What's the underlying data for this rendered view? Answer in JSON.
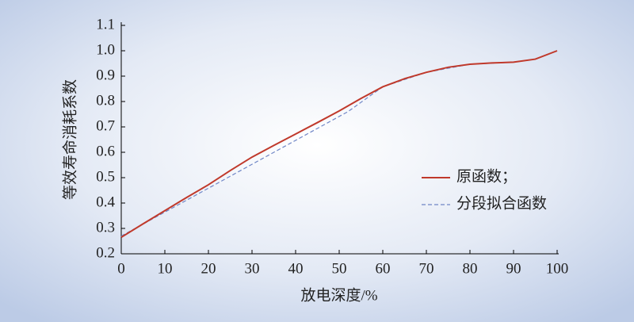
{
  "chart_data": {
    "type": "line",
    "x_label": "放电深度/%",
    "y_label": "等效寿命消耗系数",
    "xlim": [
      0,
      100
    ],
    "xticks": [
      0,
      10,
      20,
      30,
      40,
      50,
      60,
      70,
      80,
      90,
      100
    ],
    "ylim": [
      0.2,
      1.1
    ],
    "yticks": [
      0.2,
      0.3,
      0.4,
      0.5,
      0.6,
      0.7,
      0.8,
      0.9,
      {
        "value": 1,
        "label": "1.0"
      },
      1.1
    ],
    "legend": "right",
    "series": [
      {
        "name": "原函数；",
        "color": "#c0392b",
        "dash": false,
        "x": [
          0,
          5,
          10,
          15,
          20,
          25,
          30,
          35,
          40,
          45,
          50,
          55,
          60,
          65,
          70,
          75,
          80,
          85,
          90,
          95,
          100
        ],
        "values": [
          0.265,
          0.318,
          0.37,
          0.422,
          0.472,
          0.528,
          0.581,
          0.627,
          0.672,
          0.717,
          0.763,
          0.812,
          0.858,
          0.89,
          0.915,
          0.935,
          0.947,
          0.952,
          0.955,
          0.967,
          1.0
        ]
      },
      {
        "name": "分段拟合函数",
        "color": "#6f86c6",
        "dash": true,
        "x": [
          0,
          52,
          60,
          70,
          80,
          90,
          95,
          100
        ],
        "values": [
          0.27,
          0.76,
          0.858,
          0.915,
          0.947,
          0.955,
          0.967,
          1.0
        ]
      }
    ]
  }
}
